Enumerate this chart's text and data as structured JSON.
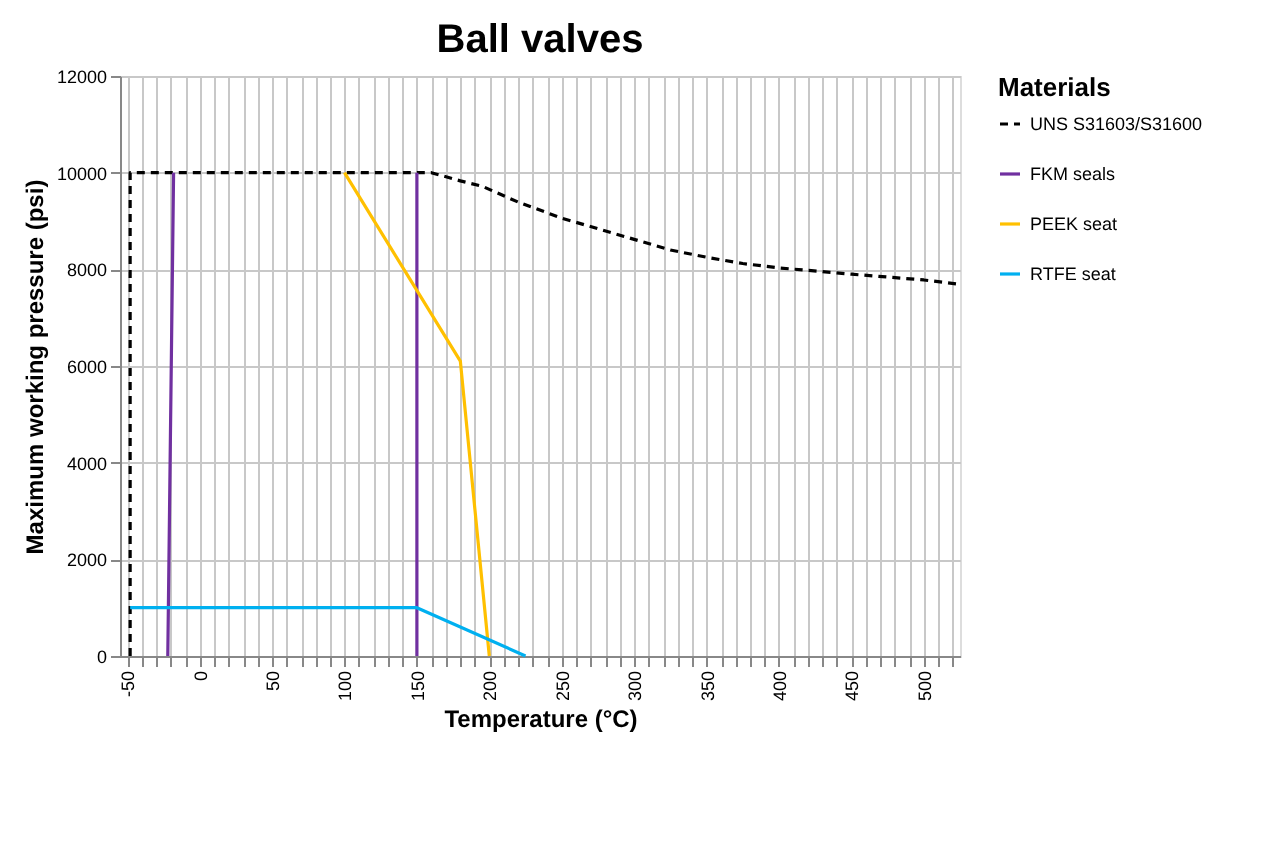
{
  "chart_data": {
    "type": "line",
    "title": "Ball valves",
    "xlabel": "Temperature (°C)",
    "ylabel": "Maximum working pressure (psi)",
    "legend_title": "Materials",
    "xlim": [
      -55,
      525
    ],
    "ylim": [
      0,
      12000
    ],
    "yticks": [
      0,
      2000,
      4000,
      6000,
      8000,
      10000,
      12000
    ],
    "xticks": [
      -50,
      {
        "value": -40,
        "label": null
      },
      {
        "value": -30,
        "label": null
      },
      {
        "value": -20,
        "label": null
      },
      {
        "value": -10,
        "label": null
      },
      0,
      {
        "value": 10,
        "label": null
      },
      {
        "value": 20,
        "label": null
      },
      {
        "value": 30,
        "label": null
      },
      {
        "value": 40,
        "label": null
      },
      50,
      {
        "value": 60,
        "label": null
      },
      {
        "value": 70,
        "label": null
      },
      {
        "value": 80,
        "label": null
      },
      {
        "value": 90,
        "label": null
      },
      100,
      {
        "value": 110,
        "label": null
      },
      {
        "value": 120,
        "label": null
      },
      {
        "value": 130,
        "label": null
      },
      {
        "value": 140,
        "label": null
      },
      150,
      {
        "value": 160,
        "label": null
      },
      {
        "value": 170,
        "label": null
      },
      {
        "value": 180,
        "label": null
      },
      {
        "value": 190,
        "label": null
      },
      200,
      {
        "value": 210,
        "label": null
      },
      {
        "value": 220,
        "label": null
      },
      {
        "value": 230,
        "label": null
      },
      {
        "value": 240,
        "label": null
      },
      250,
      {
        "value": 260,
        "label": null
      },
      {
        "value": 270,
        "label": null
      },
      {
        "value": 280,
        "label": null
      },
      {
        "value": 290,
        "label": null
      },
      300,
      {
        "value": 310,
        "label": null
      },
      {
        "value": 320,
        "label": null
      },
      {
        "value": 330,
        "label": null
      },
      {
        "value": 340,
        "label": null
      },
      350,
      {
        "value": 360,
        "label": null
      },
      {
        "value": 370,
        "label": null
      },
      {
        "value": 380,
        "label": null
      },
      {
        "value": 390,
        "label": null
      },
      400,
      {
        "value": 410,
        "label": null
      },
      {
        "value": 420,
        "label": null
      },
      {
        "value": 430,
        "label": null
      },
      {
        "value": 440,
        "label": null
      },
      450,
      {
        "value": 460,
        "label": null
      },
      {
        "value": 470,
        "label": null
      },
      {
        "value": 480,
        "label": null
      },
      {
        "value": 490,
        "label": null
      },
      500,
      {
        "value": 510,
        "label": null
      },
      {
        "value": 520,
        "label": null
      }
    ],
    "grid": true,
    "legend": "right",
    "series": [
      {
        "name": "UNS S31603/S31600",
        "color": "#000000",
        "line_style": "dashed",
        "x": [
          -48,
          -48,
          160,
          180,
          195,
          220,
          250,
          300,
          325,
          350,
          375,
          400,
          450,
          500,
          525
        ],
        "values": [
          0,
          10000,
          10000,
          9830,
          9720,
          9390,
          9060,
          8620,
          8400,
          8250,
          8120,
          8030,
          7900,
          7780,
          7690
        ]
      },
      {
        "name": "FKM seals",
        "color": "#7030a0",
        "line_style": "solid",
        "x": [
          -22,
          -18,
          null,
          150,
          150
        ],
        "values": [
          0,
          10000,
          null,
          0,
          10000
        ]
      },
      {
        "name": "PEEK seat",
        "color": "#ffc000",
        "line_style": "solid",
        "x": [
          100,
          180,
          200
        ],
        "values": [
          10000,
          6100,
          0
        ]
      },
      {
        "name": "RTFE seat",
        "color": "#00b0f0",
        "line_style": "solid",
        "x": [
          -48,
          150,
          225
        ],
        "values": [
          1000,
          1000,
          0
        ]
      }
    ]
  }
}
